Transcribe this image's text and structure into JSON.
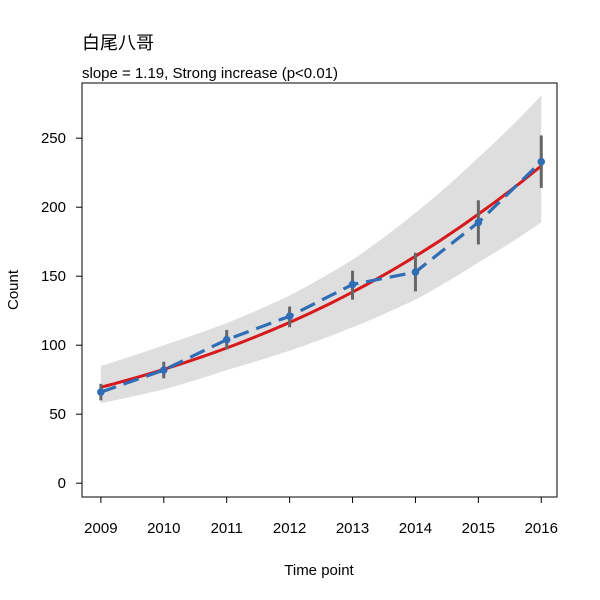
{
  "chart_data": {
    "type": "line",
    "title": "白尾八哥",
    "subtitle": "slope = 1.19, Strong increase (p<0.01)",
    "xlabel": "Time point",
    "ylabel": "Count",
    "x": [
      2009,
      2010,
      2011,
      2012,
      2013,
      2014,
      2015,
      2016
    ],
    "x_tick_labels": [
      "2009",
      "2010",
      "2011",
      "2012",
      "2013",
      "2014",
      "2015",
      "2016"
    ],
    "y_ticks": [
      0,
      50,
      100,
      150,
      200,
      250
    ],
    "y_tick_labels": [
      "0",
      "50",
      "100",
      "150",
      "200",
      "250"
    ],
    "xlim": [
      2008.7,
      2016.25
    ],
    "ylim": [
      -10,
      290
    ],
    "grid": false,
    "series": [
      {
        "kind": "observed",
        "values": [
          66,
          82,
          104,
          121,
          144,
          153,
          189,
          233
        ],
        "error_low": [
          60,
          76,
          97,
          113,
          133,
          139,
          173,
          214
        ],
        "error_high": [
          72,
          88,
          111,
          128,
          154,
          167,
          205,
          252
        ],
        "color": "#2f6db5",
        "style": "dashed",
        "error_color": "#666666"
      },
      {
        "kind": "trend",
        "values": [
          69.5,
          82.5,
          98.0,
          116.5,
          138.5,
          164.5,
          195.0,
          230.0
        ],
        "ci_low": [
          58,
          68,
          82,
          96,
          113,
          133,
          160,
          189
        ],
        "ci_high": [
          85,
          100,
          116,
          136,
          162,
          196,
          236,
          281
        ],
        "color": "#d7191c",
        "ci_color": "#dedede"
      }
    ]
  }
}
